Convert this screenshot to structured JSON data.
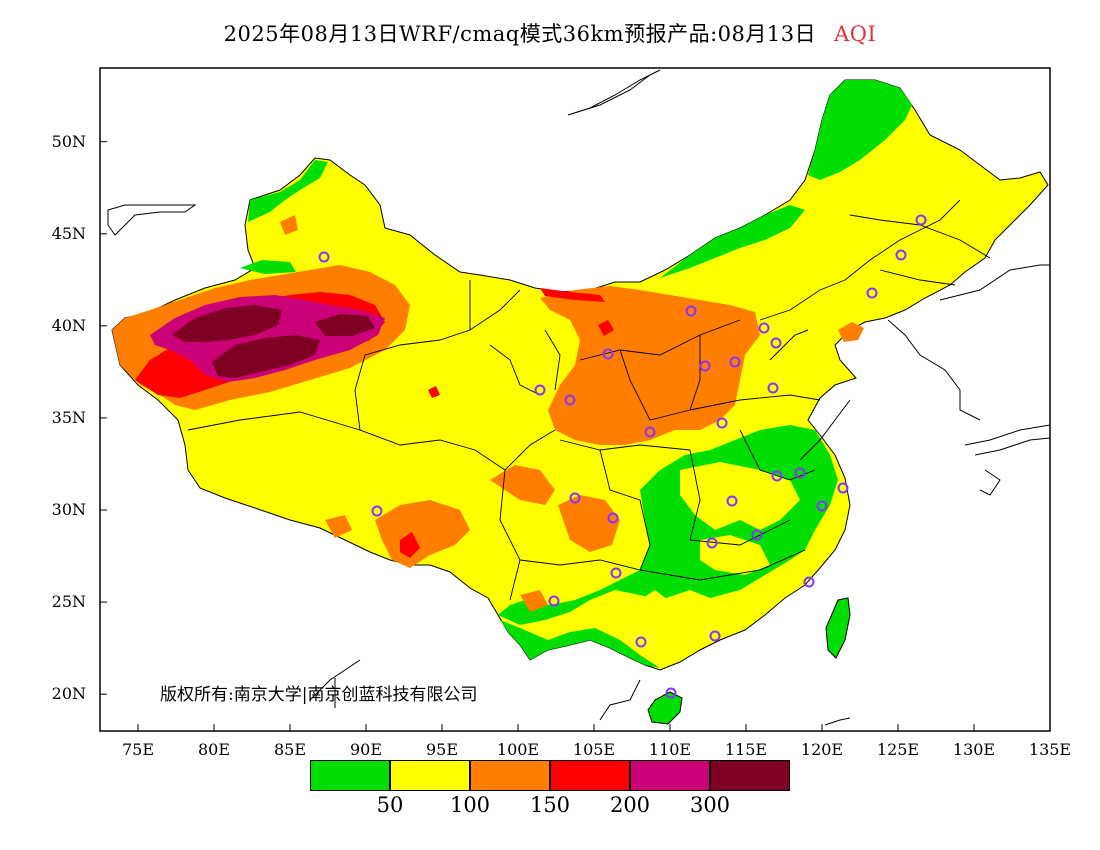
{
  "title": {
    "text": "2025年08月13日WRF/cmaq模式36km预报产品:08月13日",
    "variable": "AQI"
  },
  "copyright": "版权所有:南京大学|南京创蓝科技有限公司",
  "axes": {
    "y_ticks": [
      "50N",
      "45N",
      "40N",
      "35N",
      "30N",
      "25N",
      "20N"
    ],
    "x_ticks": [
      "75E",
      "80E",
      "85E",
      "90E",
      "95E",
      "100E",
      "105E",
      "110E",
      "115E",
      "120E",
      "125E",
      "130E",
      "135E"
    ],
    "lon_range": [
      72.5,
      135
    ],
    "lat_range": [
      18,
      54
    ]
  },
  "colorbar": {
    "colors": [
      "#00dd00",
      "#ffff00",
      "#ff7e00",
      "#ff0000",
      "#cc0077",
      "#7e0023"
    ],
    "labels": [
      "50",
      "100",
      "150",
      "200",
      "300"
    ]
  },
  "sea_color": "#ffffff",
  "station_marker_color": "#8833ff"
}
